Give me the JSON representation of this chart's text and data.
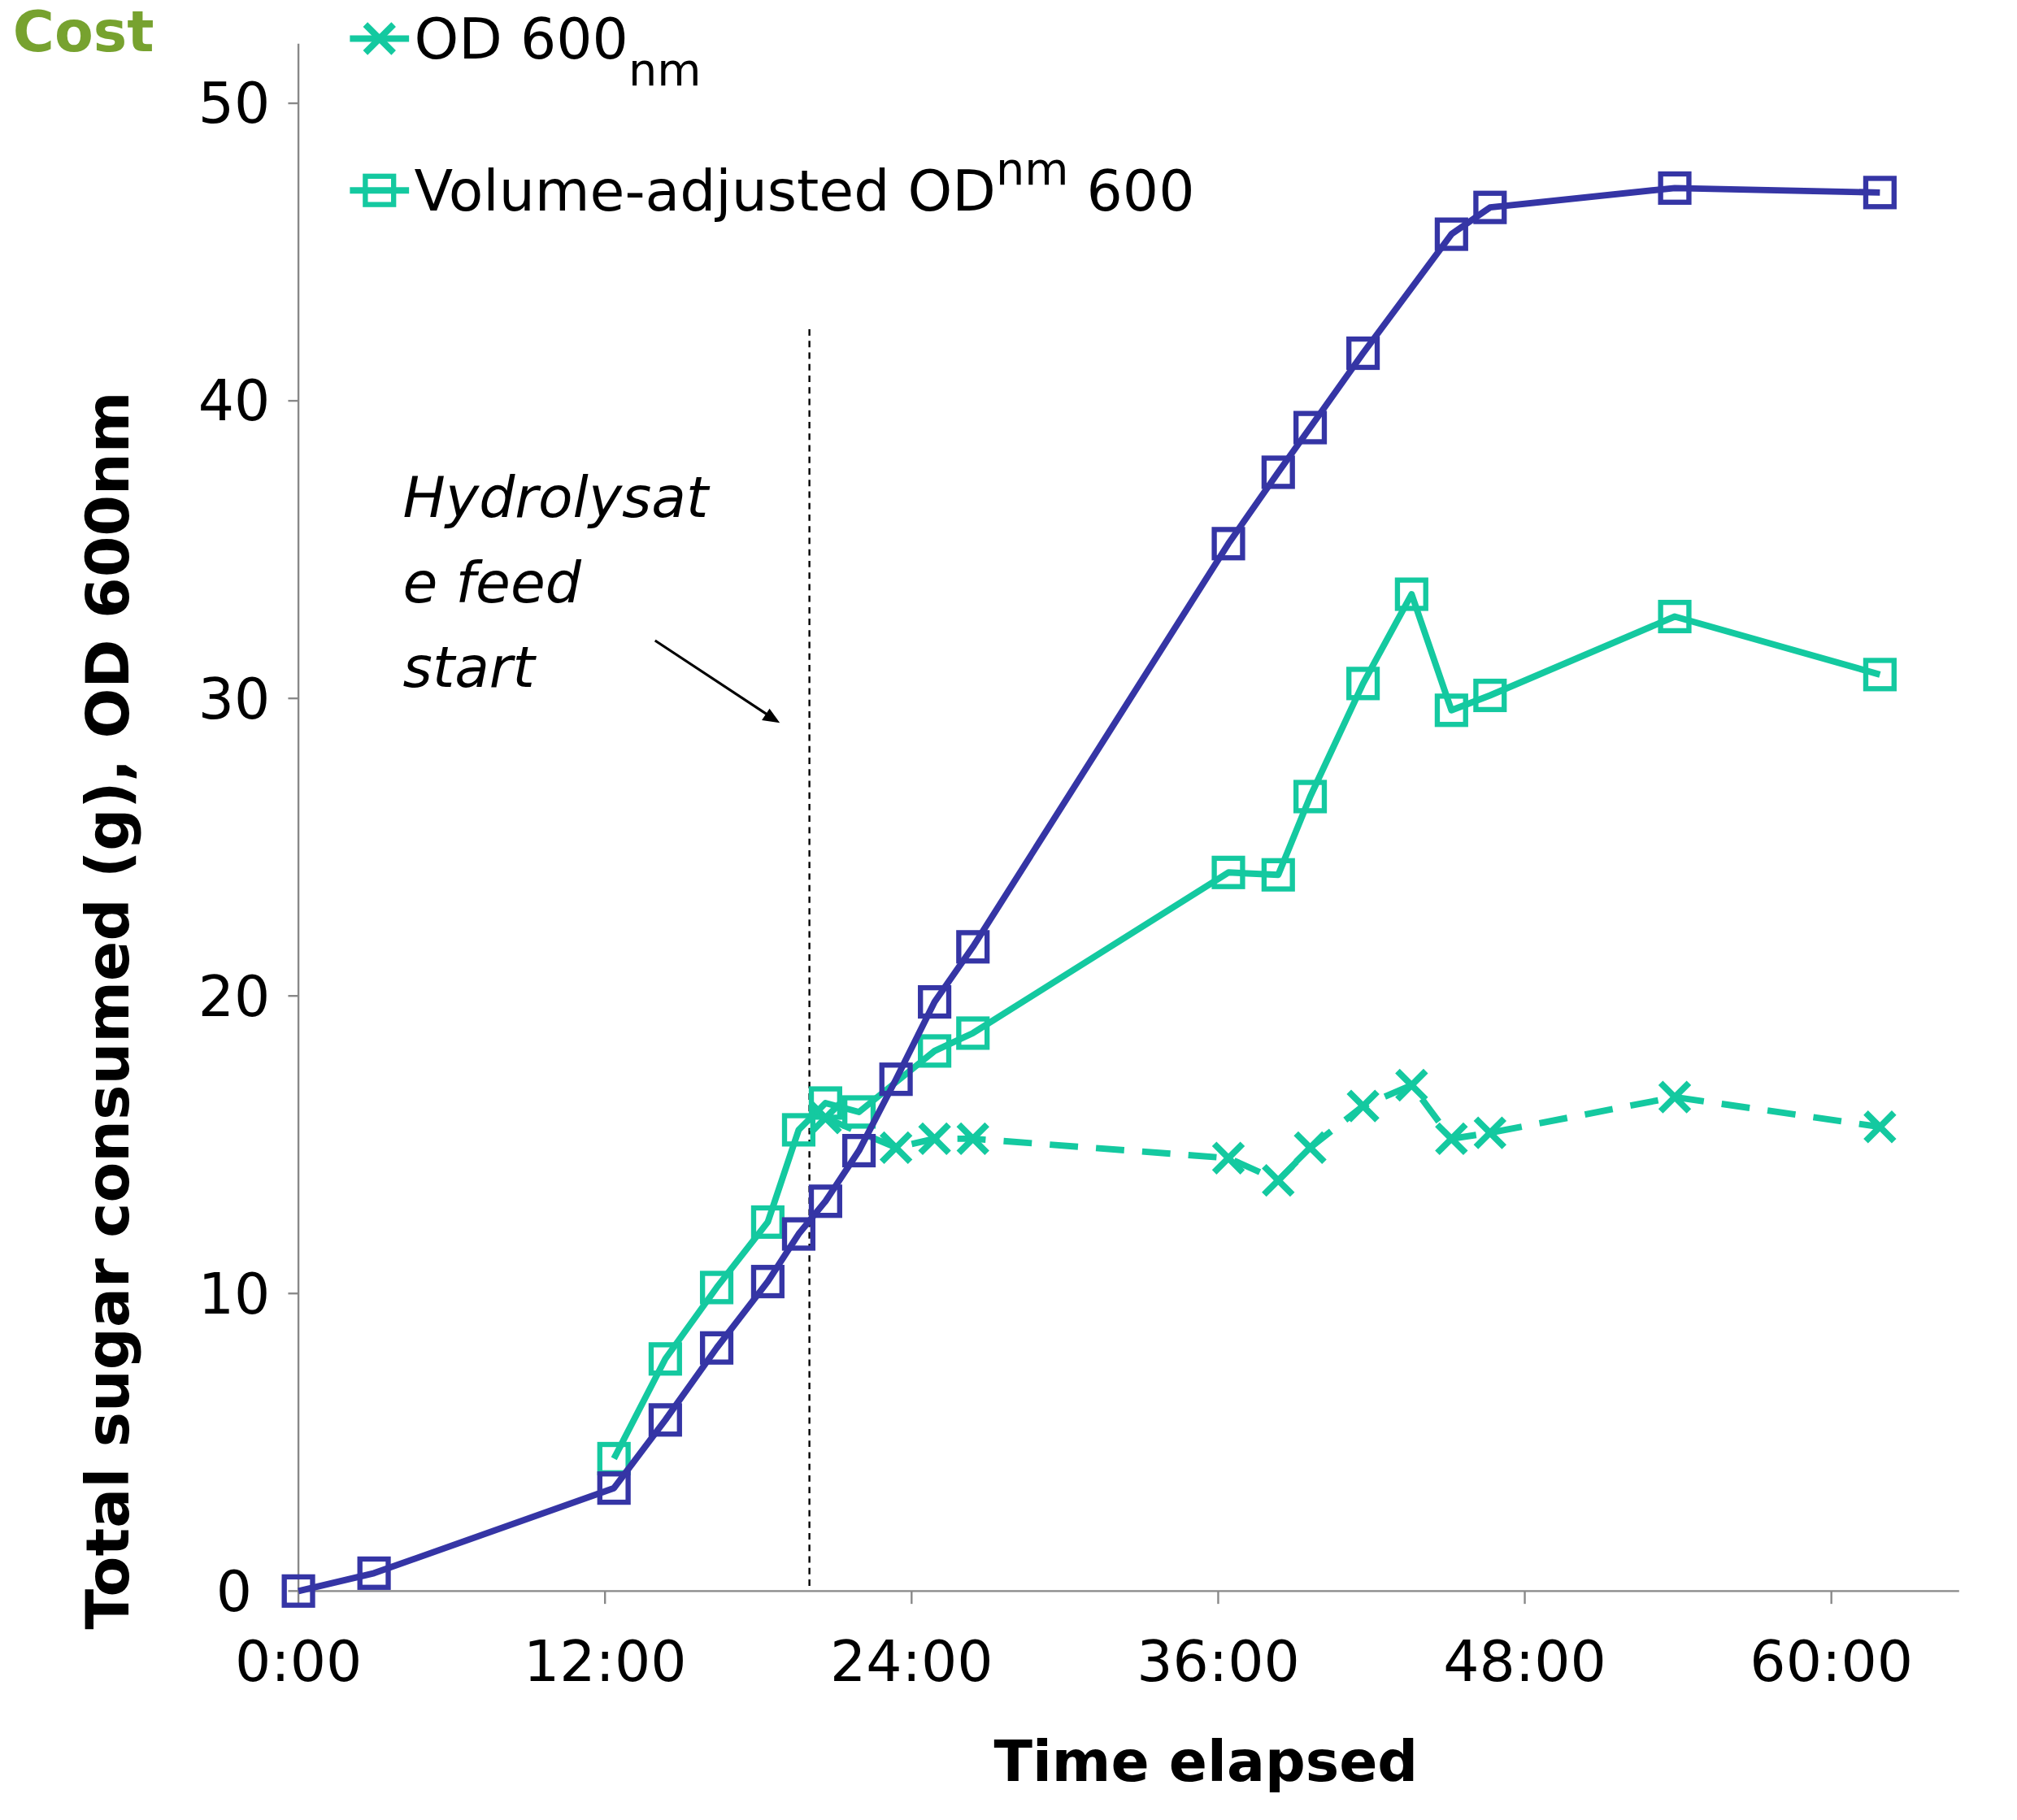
{
  "chart_data": {
    "type": "line",
    "title": "Cost",
    "xlabel": "Time elapsed",
    "ylabel": "Total sugar consumed (g), OD 600nm",
    "xlim": [
      0,
      65
    ],
    "ylim": [
      0,
      52
    ],
    "xticks": [
      {
        "value": 0,
        "label": "0:00"
      },
      {
        "value": 12,
        "label": "12:00"
      },
      {
        "value": 24,
        "label": "24:00"
      },
      {
        "value": 36,
        "label": "36:00"
      },
      {
        "value": 48,
        "label": "48:00"
      },
      {
        "value": 60,
        "label": "60:00"
      }
    ],
    "yticks": [
      0,
      10,
      20,
      30,
      40,
      50
    ],
    "grid": false,
    "legend": "top left",
    "ref_lines": [
      {
        "axis": "x",
        "value": 20,
        "label": "Hydrolysate feed start",
        "color": "#000000",
        "line_style": "dashed"
      }
    ],
    "series": [
      {
        "name": "OD 600$_{nm}$",
        "color": "#14c9a0",
        "marker": "cross",
        "line_style": "dashed",
        "x": [
          20.63,
          23.39,
          24.9,
          26.4,
          36.4,
          38.35,
          39.6,
          41.67,
          43.57,
          45.13,
          46.64,
          53.87,
          61.9
        ],
        "values": [
          15.9,
          14.9,
          15.2,
          15.2,
          14.55,
          13.8,
          14.9,
          16.3,
          17.0,
          15.2,
          15.4,
          16.6,
          15.6
        ]
      },
      {
        "name": "Volume-adjusted OD$^{nm}$ 600",
        "color": "#14c9a0",
        "marker": "square",
        "line_style": "solid",
        "x": [
          12.35,
          14.36,
          16.37,
          18.37,
          19.58,
          20.63,
          21.94,
          24.9,
          26.4,
          36.4,
          38.35,
          39.6,
          41.67,
          43.57,
          45.13,
          46.64,
          53.87,
          61.9
        ],
        "values": [
          4.45,
          7.8,
          10.2,
          12.4,
          15.5,
          16.4,
          16.1,
          18.15,
          18.75,
          24.15,
          24.07,
          26.7,
          30.5,
          33.5,
          29.6,
          30.1,
          32.75,
          30.8
        ]
      },
      {
        "color": "#3535a5",
        "marker": "square",
        "line_style": "solid",
        "x": [
          0,
          2.96,
          12.35,
          14.36,
          16.37,
          18.37,
          19.58,
          20.63,
          21.94,
          23.39,
          24.9,
          26.4,
          36.4,
          38.35,
          39.6,
          41.67,
          45.13,
          46.64,
          53.87,
          61.9
        ],
        "values": [
          0,
          0.6,
          3.46,
          5.75,
          8.17,
          10.4,
          12.0,
          13.1,
          14.8,
          17.2,
          19.8,
          21.65,
          35.2,
          37.6,
          39.1,
          41.6,
          45.6,
          46.5,
          47.15,
          47.0
        ]
      }
    ]
  }
}
